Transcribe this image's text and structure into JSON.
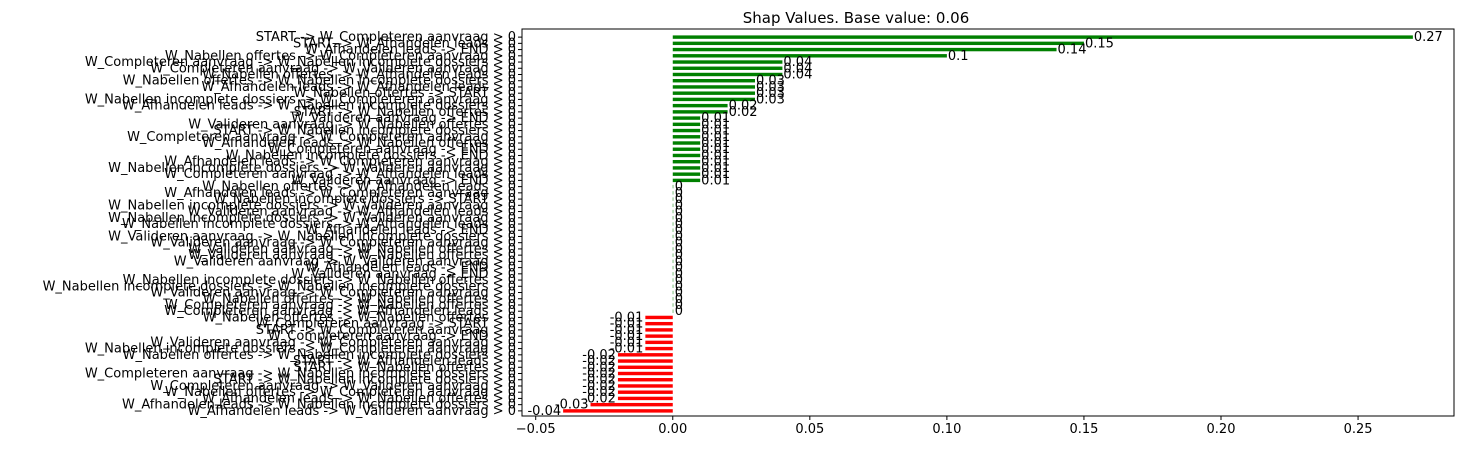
{
  "chart_data": {
    "type": "bar",
    "orientation": "horizontal",
    "title": "Shap Values. Base value: 0.06",
    "xlabel": "",
    "ylabel": "",
    "xlim": [
      -0.055,
      0.285
    ],
    "xticks": [
      -0.05,
      0.0,
      0.05,
      0.1,
      0.15,
      0.2,
      0.25
    ],
    "xtick_labels": [
      "−0.05",
      "0.00",
      "0.05",
      "0.10",
      "0.15",
      "0.20",
      "0.25"
    ],
    "grid": false,
    "colors": {
      "positive": "#008000",
      "zero": "#008000",
      "negative": "#ff0000"
    },
    "categories": [
      "START -> W_Completeren aanvraag > 0",
      "START -> W_Afhandelen leads > 0",
      "W_Afhandelen leads -> END > 0",
      "W_Nabellen offertes -> W_Completeren aanvraag > 0",
      "W_Completeren aanvraag -> W_Nabellen incomplete dossiers > 0",
      "W_Completeren aanvraag -> W_Valideren aanvraag > 0",
      "W_Nabellen offertes -> W_Afhandelen leads > 0",
      "W_Nabellen offertes -> W_Nabellen incomplete dossiers > 0",
      "W_Afhandelen leads -> W_Afhandelen leads > 0",
      "W_Nabellen offertes -> START > 0",
      "W_Nabellen incomplete dossiers -> W_Completeren aanvraag > 0",
      "W_Afhandelen leads -> W_Nabellen incomplete dossiers > 0",
      "START -> W_Nabellen offertes > 0",
      "W_Valideren aanvraag -> END > 0",
      "W_Valideren aanvraag -> W_Nabellen offertes > 0",
      "START -> W_Nabellen incomplete dossiers > 0",
      "W_Completeren aanvraag -> W_Completeren aanvraag > 0",
      "W_Afhandelen leads -> W_Nabellen offertes > 0",
      "W_Completeren aanvraag -> END > 0",
      "W_Nabellen incomplete dossiers -> END > 0",
      "W_Afhandelen leads -> W_Completeren aanvraag > 0",
      "W_Nabellen incomplete dossiers -> W_Valideren aanvraag > 0",
      "W_Completeren aanvraag -> W_Afhandelen leads > 0",
      "W_Valideren aanvraag -> END > 0",
      "W_Nabellen offertes -> W_Afhandelen leads > 0",
      "W_Afhandelen leads -> W_Completeren aanvraag > 0",
      "W_Nabellen incomplete dossiers -> START > 0",
      "W_Nabellen incomplete dossiers -> W_Valideren aanvraag > 0",
      "W_Valideren aanvraag -> W_Afhandelen leads > 0",
      "W_Nabellen incomplete dossiers -> W_Valideren aanvraag > 0",
      "W_Nabellen incomplete dossiers -> W_Afhandelen leads > 0",
      "W_Afhandelen leads -> END > 0",
      "W_Valideren aanvraag -> W_Nabellen incomplete dossiers > 0",
      "W_Valideren aanvraag -> W_Completeren aanvraag > 0",
      "W_Valideren aanvraag -> W_Nabellen offertes > 0",
      "W_Valideren aanvraag -> W_Nabellen offertes > 0",
      "W_Valideren aanvraag -> W_Valideren aanvraag > 0",
      "W_Afhandelen leads -> END > 0",
      "W_Valideren aanvraag -> END > 0",
      "W_Nabellen incomplete dossiers -> W_Nabellen offertes > 0",
      "W_Nabellen incomplete dossiers -> W_Nabellen incomplete dossiers > 0",
      "W_Valideren aanvraag -> W_Completeren aanvraag > 0",
      "W_Nabellen offertes -> W_Nabellen offertes > 0",
      "W_Completeren aanvraag -> W_Nabellen offertes > 0",
      "W_Completeren aanvraag -> W_Afhandelen leads > 0",
      "W_Nabellen offertes -> W_Nabellen offertes > 0",
      "W_Completeren aanvraag -> START > 0",
      "START -> W_Completeren aanvraag > 0",
      "W_Completeren aanvraag -> END > 0",
      "W_Valideren aanvraag -> W_Completeren aanvraag > 0",
      "W_Nabellen incomplete dossiers -> W_Completeren aanvraag > 0",
      "W_Nabellen offertes -> W_Nabellen incomplete dossiers > 0",
      "START -> W_Afhandelen leads > 0",
      "START -> W_Nabellen offertes > 0",
      "W_Completeren aanvraag -> W_Nabellen incomplete dossiers > 0",
      "START -> W_Nabellen incomplete dossiers > 0",
      "W_Completeren aanvraag -> W_Valideren aanvraag > 0",
      "W_Nabellen offertes -> W_Completeren aanvraag > 0",
      "W_Afhandelen leads -> W_Nabellen offertes > 0",
      "W_Afhandelen leads -> W_Nabellen incomplete dossiers > 0",
      "W_Afhandelen leads -> W_Valideren aanvraag > 0"
    ],
    "values": [
      0.27,
      0.15,
      0.14,
      0.1,
      0.04,
      0.04,
      0.04,
      0.03,
      0.03,
      0.03,
      0.03,
      0.02,
      0.02,
      0.01,
      0.01,
      0.01,
      0.01,
      0.01,
      0.01,
      0.01,
      0.01,
      0.01,
      0.01,
      0.01,
      0,
      0,
      0,
      0,
      0,
      0,
      0,
      0,
      0,
      0,
      0,
      0,
      0,
      0,
      0,
      0,
      0,
      0,
      0,
      0,
      0,
      -0.01,
      -0.01,
      -0.01,
      -0.01,
      -0.01,
      -0.01,
      -0.02,
      -0.02,
      -0.02,
      -0.02,
      -0.02,
      -0.02,
      -0.02,
      -0.02,
      -0.03,
      -0.04
    ],
    "value_labels": [
      "0.27",
      "0.15",
      "0.14",
      "0.1",
      "0.04",
      "0.04",
      "0.04",
      "0.03",
      "0.03",
      "0.03",
      "0.03",
      "0.02",
      "0.02",
      "0.01",
      "0.01",
      "0.01",
      "0.01",
      "0.01",
      "0.01",
      "0.01",
      "0.01",
      "0.01",
      "0.01",
      "0.01",
      "0",
      "0",
      "0",
      "0",
      "0",
      "0",
      "0",
      "0",
      "0",
      "0",
      "0",
      "0",
      "0",
      "0",
      "0",
      "0",
      "0",
      "0",
      "0",
      "0",
      "0",
      "-0.01",
      "-0.01",
      "-0.01",
      "-0.01",
      "-0.01",
      "-0.01",
      "-0.02",
      "-0.02",
      "-0.02",
      "-0.02",
      "-0.02",
      "-0.02",
      "-0.02",
      "-0.02",
      "-0.03",
      "-0.04"
    ]
  }
}
